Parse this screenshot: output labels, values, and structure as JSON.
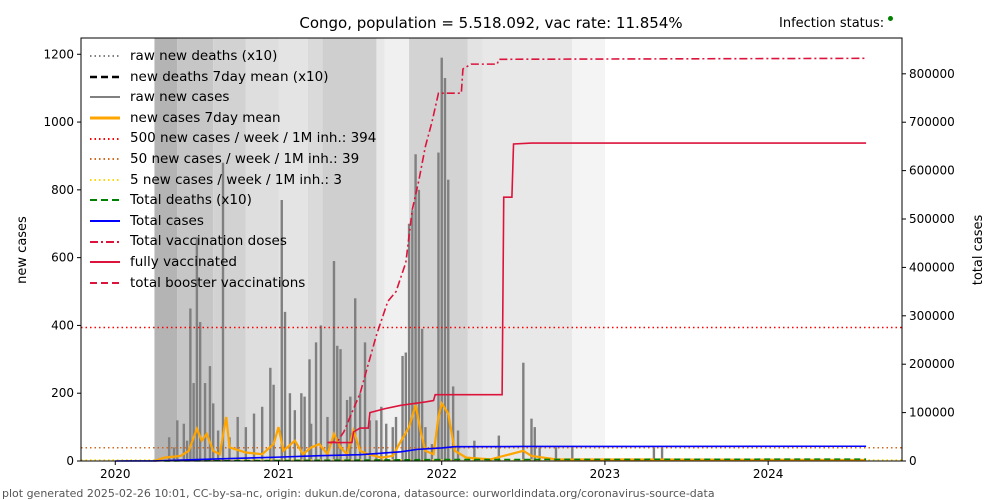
{
  "header": {
    "title": "Congo, population = 5.518.092, vac rate: 11.854%",
    "infection_status_label": "Infection status:",
    "infection_status_color": "#008000"
  },
  "footer": "plot generated 2025-02-26 10:01, CC-by-sa-nc, origin: dukun.de/corona, datasource: ourworldindata.org/coronavirus-source-data",
  "chart_data": {
    "type": "bar+line",
    "title": "Congo, population = 5.518.092, vac rate: 11.854%",
    "ylabel": "new cases",
    "y2label": "total cases",
    "xlim": [
      2019.79,
      2024.82
    ],
    "ylim": [
      0,
      1248
    ],
    "y2lim": [
      0,
      874000
    ],
    "xticks": [
      {
        "v": 2020,
        "label": "2020"
      },
      {
        "v": 2021,
        "label": "2021"
      },
      {
        "v": 2022,
        "label": "2022"
      },
      {
        "v": 2023,
        "label": "2023"
      },
      {
        "v": 2024,
        "label": "2024"
      }
    ],
    "yticks": [
      {
        "v": 0,
        "label": "0"
      },
      {
        "v": 200,
        "label": "200"
      },
      {
        "v": 400,
        "label": "400"
      },
      {
        "v": 600,
        "label": "600"
      },
      {
        "v": 800,
        "label": "800"
      },
      {
        "v": 1000,
        "label": "1000"
      },
      {
        "v": 1200,
        "label": "1200"
      }
    ],
    "y2ticks": [
      {
        "v": 0,
        "label": "0"
      },
      {
        "v": 100000,
        "label": "100000"
      },
      {
        "v": 200000,
        "label": "200000"
      },
      {
        "v": 300000,
        "label": "300000"
      },
      {
        "v": 400000,
        "label": "400000"
      },
      {
        "v": 500000,
        "label": "500000"
      },
      {
        "v": 600000,
        "label": "600000"
      },
      {
        "v": 700000,
        "label": "700000"
      },
      {
        "v": 800000,
        "label": "800000"
      }
    ],
    "legend": [
      {
        "label": "raw new deaths (x10)",
        "color": "#808080",
        "style": "dotted"
      },
      {
        "label": "new deaths 7day mean (x10)",
        "color": "#000000",
        "style": "dashed"
      },
      {
        "label": "raw new cases",
        "color": "#808080",
        "style": "solid"
      },
      {
        "label": "new cases 7day mean",
        "color": "#ffa500",
        "style": "solid-thick"
      },
      {
        "label": "500 new cases / week / 1M inh.: 394",
        "color": "#ff0000",
        "style": "dotted"
      },
      {
        "label": "50 new cases / week / 1M inh.: 39",
        "color": "#d2691e",
        "style": "dotted"
      },
      {
        "label": "5 new cases / week / 1M inh.: 3",
        "color": "#ffd700",
        "style": "dotted"
      },
      {
        "label": "Total deaths (x10)",
        "color": "#008000",
        "style": "dashed"
      },
      {
        "label": "Total cases",
        "color": "#0000ff",
        "style": "solid"
      },
      {
        "label": "Total vaccination doses",
        "color": "#dc143c",
        "style": "dashdot"
      },
      {
        "label": "fully vaccinated",
        "color": "#dc143c",
        "style": "solid"
      },
      {
        "label": "total booster vaccinations",
        "color": "#dc143c",
        "style": "dashed"
      }
    ],
    "thresholds": [
      {
        "v": 394,
        "color": "#ff0000"
      },
      {
        "v": 39,
        "color": "#d2691e"
      },
      {
        "v": 3,
        "color": "#ffd700"
      }
    ],
    "bands": [
      [
        2020.24,
        2020.38,
        "#b4b4b4"
      ],
      [
        2020.38,
        2020.6,
        "#c6c6c6"
      ],
      [
        2020.6,
        2020.8,
        "#d2d2d2"
      ],
      [
        2020.8,
        2021.0,
        "#dedede"
      ],
      [
        2021.0,
        2021.18,
        "#e4e4e4"
      ],
      [
        2021.18,
        2021.27,
        "#dadada"
      ],
      [
        2021.27,
        2021.6,
        "#cfcfcf"
      ],
      [
        2021.6,
        2021.65,
        "#e8e8e8"
      ],
      [
        2021.65,
        2021.8,
        "#f0f0f0"
      ],
      [
        2021.8,
        2022.16,
        "#d3d3d3"
      ],
      [
        2022.16,
        2022.25,
        "#e3e3e3"
      ],
      [
        2022.25,
        2022.8,
        "#e8e8e8"
      ],
      [
        2022.8,
        2023.0,
        "#f4f4f4"
      ]
    ],
    "raw_new_cases": [
      [
        2020.33,
        70
      ],
      [
        2020.36,
        40
      ],
      [
        2020.38,
        120
      ],
      [
        2020.42,
        110
      ],
      [
        2020.44,
        60
      ],
      [
        2020.46,
        450
      ],
      [
        2020.48,
        230
      ],
      [
        2020.5,
        660
      ],
      [
        2020.52,
        410
      ],
      [
        2020.55,
        230
      ],
      [
        2020.58,
        280
      ],
      [
        2020.6,
        170
      ],
      [
        2020.63,
        90
      ],
      [
        2020.66,
        880
      ],
      [
        2020.7,
        70
      ],
      [
        2020.75,
        130
      ],
      [
        2020.8,
        100
      ],
      [
        2020.85,
        140
      ],
      [
        2020.9,
        160
      ],
      [
        2020.95,
        275
      ],
      [
        2020.97,
        225
      ],
      [
        2021.02,
        770
      ],
      [
        2021.04,
        440
      ],
      [
        2021.07,
        200
      ],
      [
        2021.1,
        150
      ],
      [
        2021.14,
        200
      ],
      [
        2021.16,
        190
      ],
      [
        2021.19,
        300
      ],
      [
        2021.2,
        110
      ],
      [
        2021.23,
        350
      ],
      [
        2021.26,
        400
      ],
      [
        2021.3,
        130
      ],
      [
        2021.34,
        590
      ],
      [
        2021.36,
        340
      ],
      [
        2021.38,
        330
      ],
      [
        2021.42,
        180
      ],
      [
        2021.44,
        190
      ],
      [
        2021.47,
        480
      ],
      [
        2021.5,
        200
      ],
      [
        2021.53,
        350
      ],
      [
        2021.56,
        120
      ],
      [
        2021.6,
        120
      ],
      [
        2021.63,
        160
      ],
      [
        2021.66,
        110
      ],
      [
        2021.7,
        100
      ],
      [
        2021.72,
        130
      ],
      [
        2021.76,
        310
      ],
      [
        2021.78,
        320
      ],
      [
        2021.8,
        700
      ],
      [
        2021.82,
        740
      ],
      [
        2021.84,
        905
      ],
      [
        2021.86,
        800
      ],
      [
        2021.88,
        390
      ],
      [
        2021.9,
        100
      ],
      [
        2021.94,
        50
      ],
      [
        2021.98,
        910
      ],
      [
        2022.0,
        1190
      ],
      [
        2022.02,
        1130
      ],
      [
        2022.04,
        830
      ],
      [
        2022.07,
        220
      ],
      [
        2022.1,
        90
      ],
      [
        2022.2,
        60
      ],
      [
        2022.35,
        75
      ],
      [
        2022.5,
        290
      ],
      [
        2022.55,
        125
      ],
      [
        2022.57,
        100
      ],
      [
        2022.6,
        40
      ],
      [
        2022.7,
        40
      ],
      [
        2022.8,
        45
      ],
      [
        2023.3,
        40
      ],
      [
        2023.35,
        40
      ]
    ],
    "new_cases_7day_mean": [
      [
        2020.24,
        0
      ],
      [
        2020.3,
        10
      ],
      [
        2020.4,
        15
      ],
      [
        2020.45,
        30
      ],
      [
        2020.5,
        95
      ],
      [
        2020.53,
        60
      ],
      [
        2020.56,
        80
      ],
      [
        2020.6,
        30
      ],
      [
        2020.64,
        20
      ],
      [
        2020.68,
        130
      ],
      [
        2020.7,
        40
      ],
      [
        2020.8,
        25
      ],
      [
        2020.9,
        20
      ],
      [
        2020.97,
        50
      ],
      [
        2021.0,
        100
      ],
      [
        2021.03,
        30
      ],
      [
        2021.1,
        60
      ],
      [
        2021.15,
        20
      ],
      [
        2021.2,
        40
      ],
      [
        2021.25,
        50
      ],
      [
        2021.3,
        20
      ],
      [
        2021.34,
        80
      ],
      [
        2021.38,
        40
      ],
      [
        2021.42,
        20
      ],
      [
        2021.46,
        90
      ],
      [
        2021.5,
        30
      ],
      [
        2021.55,
        20
      ],
      [
        2021.63,
        10
      ],
      [
        2021.7,
        15
      ],
      [
        2021.74,
        50
      ],
      [
        2021.8,
        100
      ],
      [
        2021.84,
        165
      ],
      [
        2021.87,
        90
      ],
      [
        2021.9,
        30
      ],
      [
        2021.95,
        20
      ],
      [
        2021.98,
        130
      ],
      [
        2022.0,
        170
      ],
      [
        2022.04,
        140
      ],
      [
        2022.08,
        30
      ],
      [
        2022.15,
        10
      ],
      [
        2022.3,
        5
      ],
      [
        2022.5,
        30
      ],
      [
        2022.55,
        15
      ],
      [
        2022.7,
        5
      ],
      [
        2024.6,
        3
      ]
    ],
    "total_cases": [
      [
        2020.0,
        0
      ],
      [
        2020.24,
        200
      ],
      [
        2020.5,
        3000
      ],
      [
        2020.75,
        5500
      ],
      [
        2021.0,
        8000
      ],
      [
        2021.25,
        11000
      ],
      [
        2021.5,
        13000
      ],
      [
        2021.75,
        19000
      ],
      [
        2021.85,
        24000
      ],
      [
        2022.0,
        27000
      ],
      [
        2022.08,
        29500
      ],
      [
        2022.5,
        30000
      ],
      [
        2024.6,
        30500
      ]
    ],
    "total_deaths_x10": [
      [
        2020.3,
        0
      ],
      [
        2021.0,
        1000
      ],
      [
        2022.0,
        3000
      ],
      [
        2024.6,
        4000
      ]
    ],
    "total_vaccination_doses": [
      [
        2021.3,
        38000
      ],
      [
        2021.36,
        40000
      ],
      [
        2021.4,
        60000
      ],
      [
        2021.45,
        100000
      ],
      [
        2021.5,
        140000
      ],
      [
        2021.55,
        200000
      ],
      [
        2021.6,
        260000
      ],
      [
        2021.67,
        330000
      ],
      [
        2021.72,
        350000
      ],
      [
        2021.78,
        410000
      ],
      [
        2021.82,
        520000
      ],
      [
        2021.86,
        580000
      ],
      [
        2021.9,
        650000
      ],
      [
        2021.94,
        700000
      ],
      [
        2021.98,
        760000
      ],
      [
        2022.12,
        760000
      ],
      [
        2022.13,
        810000
      ],
      [
        2022.18,
        820000
      ],
      [
        2022.34,
        820000
      ],
      [
        2022.35,
        830000
      ],
      [
        2024.6,
        832000
      ]
    ],
    "fully_vaccinated": [
      [
        2021.3,
        38000
      ],
      [
        2021.45,
        38000
      ],
      [
        2021.46,
        60000
      ],
      [
        2021.5,
        68000
      ],
      [
        2021.55,
        68000
      ],
      [
        2021.56,
        100000
      ],
      [
        2021.65,
        108000
      ],
      [
        2021.75,
        115000
      ],
      [
        2021.9,
        122000
      ],
      [
        2021.95,
        125000
      ],
      [
        2021.96,
        137000
      ],
      [
        2022.37,
        137000
      ],
      [
        2022.38,
        545000
      ],
      [
        2022.43,
        545000
      ],
      [
        2022.44,
        655000
      ],
      [
        2022.55,
        657000
      ],
      [
        2024.6,
        657000
      ]
    ]
  }
}
